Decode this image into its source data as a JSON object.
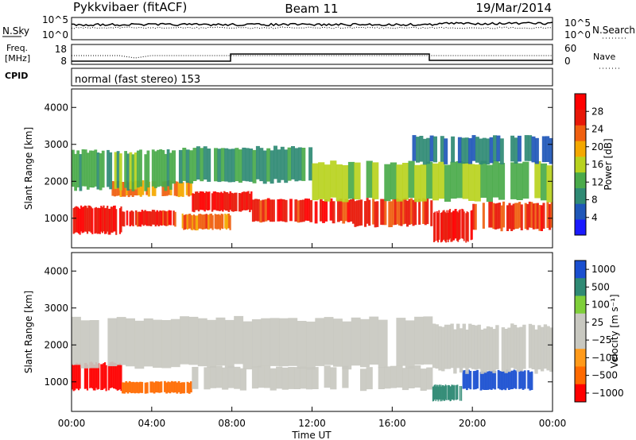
{
  "header": {
    "station": "Pykkvibaer (fitACF)",
    "beam": "Beam 11",
    "date": "19/Mar/2014"
  },
  "status_panels": {
    "nsky": {
      "label": "N.Sky",
      "ticks": [
        "10^5",
        "10^0"
      ]
    },
    "nsearch": {
      "label": "N.Search",
      "ticks": [
        "10^5",
        "10^0"
      ]
    },
    "freq": {
      "label_line1": "Freq.",
      "label_line2": "[MHz]",
      "ticks": [
        "18",
        "8"
      ]
    },
    "nave": {
      "label": "Nave",
      "ticks": [
        "60",
        "0"
      ]
    },
    "cpid": {
      "label": "CPID",
      "text": "normal (fast stereo) 153"
    }
  },
  "colors": {
    "power_scale": [
      "#1a1aff",
      "#1f57b8",
      "#2f8a74",
      "#4aaa4a",
      "#b8d21e",
      "#f4a800",
      "#f06010",
      "#e81808",
      "#ff0000"
    ],
    "velocity_scale": [
      "#ff0000",
      "#ff6a00",
      "#ff9a1a",
      "#c8c8c0",
      "#c8c8c0",
      "#7fcf3a",
      "#2f8a74",
      "#1a4fd0"
    ],
    "axis": "#000000"
  },
  "chart_data": [
    {
      "type": "heatmap",
      "name": "power",
      "ylabel": "Slant Range [km]",
      "ylim": [
        200,
        4500
      ],
      "yticks": [
        1000,
        2000,
        3000,
        4000
      ],
      "xlim": [
        0,
        24
      ],
      "colorbar": {
        "label": "Power [dB]",
        "range": [
          0,
          32
        ],
        "ticks": [
          4,
          8,
          12,
          16,
          20,
          24,
          28
        ]
      },
      "bands": [
        {
          "t0": 0.0,
          "t1": 2.5,
          "r0": 600,
          "r1": 1300,
          "v": 28
        },
        {
          "t0": 2.5,
          "t1": 5.5,
          "r0": 800,
          "r1": 1200,
          "v": 27
        },
        {
          "t0": 5.5,
          "t1": 8.0,
          "r0": 700,
          "r1": 1100,
          "v": 22
        },
        {
          "t0": 2.0,
          "t1": 6.0,
          "r0": 1600,
          "r1": 2000,
          "v": 22
        },
        {
          "t0": 6.0,
          "t1": 9.0,
          "r0": 1200,
          "r1": 1700,
          "v": 28
        },
        {
          "t0": 9.0,
          "t1": 14.0,
          "r0": 900,
          "r1": 1500,
          "v": 27
        },
        {
          "t0": 14.0,
          "t1": 18.0,
          "r0": 800,
          "r1": 1500,
          "v": 25
        },
        {
          "t0": 18.0,
          "t1": 20.0,
          "r0": 400,
          "r1": 1200,
          "v": 28
        },
        {
          "t0": 20.0,
          "t1": 24.0,
          "r0": 700,
          "r1": 1400,
          "v": 26
        },
        {
          "t0": 0.0,
          "t1": 5.0,
          "r0": 1800,
          "r1": 2800,
          "v": 12
        },
        {
          "t0": 5.0,
          "t1": 12.0,
          "r0": 2000,
          "r1": 2900,
          "v": 10
        },
        {
          "t0": 12.0,
          "t1": 24.0,
          "r0": 1500,
          "r1": 2500,
          "v": 14
        },
        {
          "t0": 17.0,
          "t1": 24.0,
          "r0": 2500,
          "r1": 3200,
          "v": 8
        }
      ]
    },
    {
      "type": "heatmap",
      "name": "velocity",
      "ylabel": "Slant Range [km]",
      "ylim": [
        200,
        4500
      ],
      "yticks": [
        1000,
        2000,
        3000,
        4000
      ],
      "xlabel": "Time UT",
      "xlim": [
        0,
        24
      ],
      "xticks": [
        "00:00",
        "04:00",
        "08:00",
        "12:00",
        "16:00",
        "20:00",
        "00:00"
      ],
      "colorbar": {
        "label": "Velocity [m s⁻¹]",
        "tick_labels": [
          "1000",
          "500",
          "100",
          "25",
          "−25",
          "−100",
          "−500",
          "−1000"
        ]
      },
      "bands": [
        {
          "t0": 0.0,
          "t1": 2.5,
          "r0": 800,
          "r1": 1500,
          "v": -500
        },
        {
          "t0": 2.5,
          "t1": 6.0,
          "r0": 700,
          "r1": 1000,
          "v": -300
        },
        {
          "t0": 0.0,
          "t1": 18.0,
          "r0": 1400,
          "r1": 2700,
          "v": 0
        },
        {
          "t0": 6.0,
          "t1": 18.0,
          "r0": 800,
          "r1": 1400,
          "v": 0
        },
        {
          "t0": 18.0,
          "t1": 19.5,
          "r0": 500,
          "r1": 900,
          "v": 150
        },
        {
          "t0": 19.5,
          "t1": 23.0,
          "r0": 800,
          "r1": 1300,
          "v": 800
        },
        {
          "t0": 18.0,
          "t1": 24.0,
          "r0": 1300,
          "r1": 2500,
          "v": 0
        }
      ]
    }
  ]
}
